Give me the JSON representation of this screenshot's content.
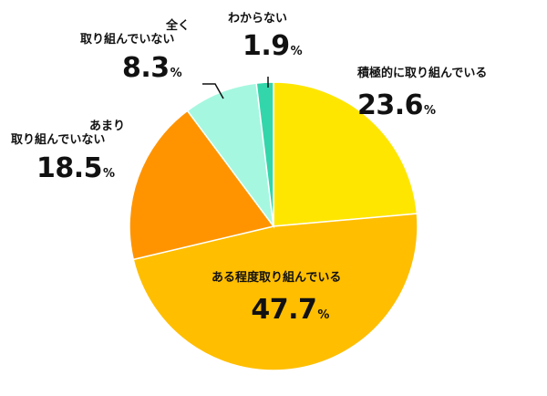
{
  "chart_data": {
    "type": "pie",
    "start_angle_deg": 0,
    "direction": "clockwise",
    "slices": [
      {
        "label": "積極的に取り組んでいる",
        "value": 23.6,
        "value_text": "23.6",
        "color": "#FFE600"
      },
      {
        "label": "ある程度取り組んでいる",
        "value": 47.7,
        "value_text": "47.7",
        "color": "#FFBE00"
      },
      {
        "label": "あまり取り組んでいない",
        "label_lines": [
          "あまり",
          "取り組んでいない"
        ],
        "value": 18.5,
        "value_text": "18.5",
        "color": "#FF9400"
      },
      {
        "label": "全く取り組んでいない",
        "label_lines": [
          "全く",
          "取り組んでいない"
        ],
        "value": 8.3,
        "value_text": "8.3",
        "color": "#A6F7E0"
      },
      {
        "label": "わからない",
        "value": 1.9,
        "value_text": "1.9",
        "color": "#33D6AA"
      }
    ],
    "unit": "%"
  }
}
